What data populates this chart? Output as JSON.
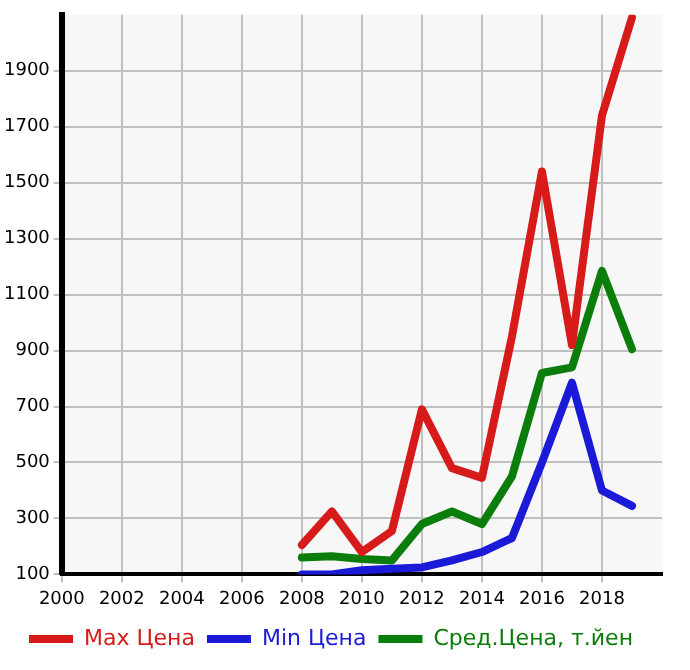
{
  "chart_data": {
    "type": "line",
    "x": [
      2008,
      2009,
      2010,
      2011,
      2012,
      2013,
      2014,
      2015,
      2016,
      2017,
      2018,
      2019
    ],
    "series": [
      {
        "name": "Max Цена",
        "color": "#d71a1a",
        "values": [
          205,
          325,
          180,
          255,
          690,
          480,
          445,
          950,
          1540,
          920,
          1740,
          2090
        ]
      },
      {
        "name": "Min Цена",
        "color": "#1a1ad7",
        "values": [
          100,
          100,
          115,
          120,
          125,
          150,
          180,
          230,
          500,
          785,
          400,
          345
        ]
      },
      {
        "name": "Сред.Цена, т.йен",
        "color": "#0a7d0a",
        "values": [
          160,
          165,
          155,
          150,
          280,
          325,
          280,
          450,
          820,
          840,
          1185,
          905
        ]
      }
    ],
    "xlim": [
      2000,
      2020
    ],
    "xticks": [
      2000,
      2002,
      2004,
      2006,
      2008,
      2010,
      2012,
      2014,
      2016,
      2018
    ],
    "ylim": [
      100,
      2100
    ],
    "yticks": [
      100,
      300,
      500,
      700,
      900,
      1100,
      1300,
      1500,
      1700,
      1900
    ],
    "grid": true,
    "legend": "bottom",
    "marker": "none",
    "line_style": "solid"
  }
}
